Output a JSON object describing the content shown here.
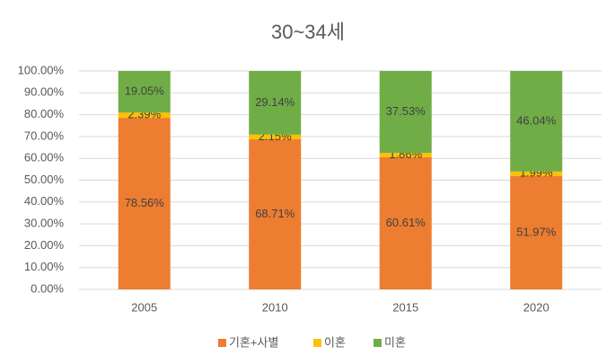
{
  "chart_data": {
    "type": "stacked-bar",
    "title": "30~34세",
    "categories": [
      "2005",
      "2010",
      "2015",
      "2020"
    ],
    "series": [
      {
        "name": "기혼+사별",
        "color": "#ED7D31",
        "values": [
          78.56,
          68.71,
          60.61,
          51.97
        ],
        "value_labels": [
          "78.56%",
          "68.71%",
          "60.61%",
          "51.97%"
        ]
      },
      {
        "name": "이혼",
        "color": "#FFC000",
        "values": [
          2.39,
          2.15,
          1.86,
          1.99
        ],
        "value_labels": [
          "2.39%",
          "2.15%",
          "1.86%",
          "1.99%"
        ]
      },
      {
        "name": "미혼",
        "color": "#70AD47",
        "values": [
          19.05,
          29.14,
          37.53,
          46.04
        ],
        "value_labels": [
          "19.05%",
          "29.14%",
          "37.53%",
          "46.04%"
        ]
      }
    ],
    "ylim": [
      0,
      100
    ],
    "yticks": [
      {
        "value": 0,
        "label": "0.00%"
      },
      {
        "value": 10,
        "label": "10.00%"
      },
      {
        "value": 20,
        "label": "20.00%"
      },
      {
        "value": 30,
        "label": "30.00%"
      },
      {
        "value": 40,
        "label": "40.00%"
      },
      {
        "value": 50,
        "label": "50.00%"
      },
      {
        "value": 60,
        "label": "60.00%"
      },
      {
        "value": 70,
        "label": "70.00%"
      },
      {
        "value": 80,
        "label": "80.00%"
      },
      {
        "value": 90,
        "label": "90.00%"
      },
      {
        "value": 100,
        "label": "100.00%"
      }
    ],
    "grid": true,
    "legend": "bottom"
  }
}
